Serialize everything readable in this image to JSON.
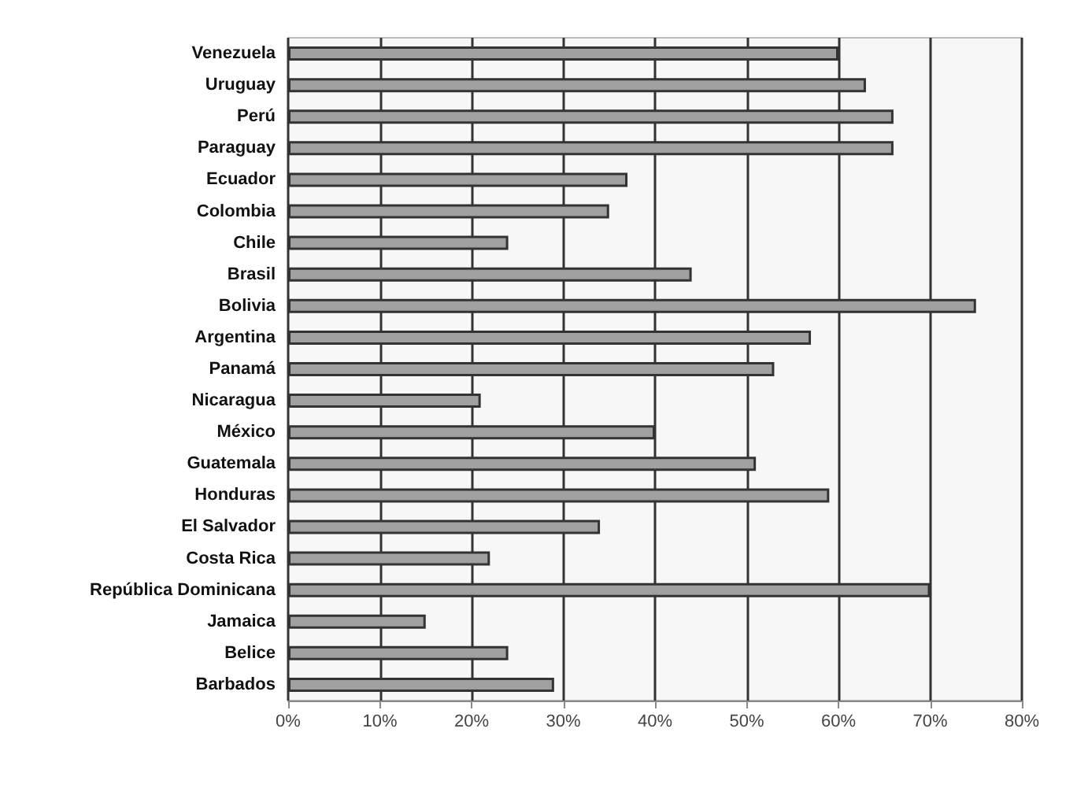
{
  "chart_data": {
    "type": "bar",
    "orientation": "horizontal",
    "categories": [
      "Venezuela",
      "Uruguay",
      "Perú",
      "Paraguay",
      "Ecuador",
      "Colombia",
      "Chile",
      "Brasil",
      "Bolivia",
      "Argentina",
      "Panamá",
      "Nicaragua",
      "México",
      "Guatemala",
      "Honduras",
      "El Salvador",
      "Costa Rica",
      "República Dominicana",
      "Jamaica",
      "Belice",
      "Barbados"
    ],
    "values": [
      60,
      63,
      66,
      66,
      37,
      35,
      24,
      44,
      75,
      57,
      53,
      21,
      40,
      51,
      59,
      34,
      22,
      70,
      15,
      24,
      29
    ],
    "color": "#a0a0a0",
    "xlim": [
      0,
      80
    ],
    "xticks": [
      {
        "value": 0,
        "label": "0%"
      },
      {
        "value": 10,
        "label": "10%"
      },
      {
        "value": 20,
        "label": "20%"
      },
      {
        "value": 30,
        "label": "30%"
      },
      {
        "value": 40,
        "label": "40%"
      },
      {
        "value": 50,
        "label": "50%"
      },
      {
        "value": 60,
        "label": "60%"
      },
      {
        "value": 70,
        "label": "70%"
      },
      {
        "value": 80,
        "label": "80%"
      }
    ],
    "grid": "x"
  }
}
